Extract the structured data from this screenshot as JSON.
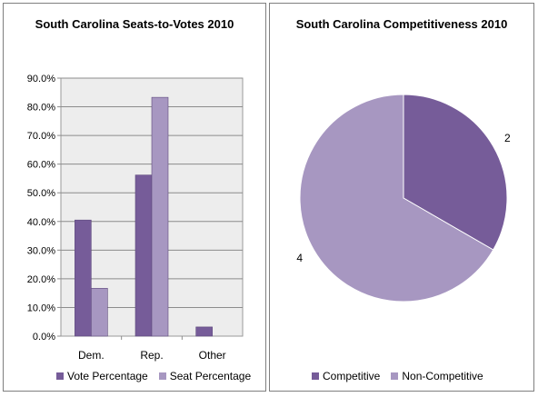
{
  "chart_data": [
    {
      "type": "bar",
      "title": "South Carolina Seats-to-Votes 2010",
      "categories": [
        "Dem.",
        "Rep.",
        "Other"
      ],
      "ylim": [
        0,
        90
      ],
      "yticks": [
        "0.0%",
        "10.0%",
        "20.0%",
        "30.0%",
        "40.0%",
        "50.0%",
        "60.0%",
        "70.0%",
        "80.0%",
        "90.0%"
      ],
      "grid": true,
      "legend": "bottom",
      "series": [
        {
          "name": "Vote Percentage",
          "values": [
            40.5,
            56.2,
            3.2
          ],
          "color": "#765c99"
        },
        {
          "name": "Seat Percentage",
          "values": [
            16.7,
            83.3,
            0.0
          ],
          "color": "#a797c1"
        }
      ]
    },
    {
      "type": "pie",
      "title": "South Carolina Competitiveness 2010",
      "legend": "bottom",
      "slices": [
        {
          "name": "Competitive",
          "value": 2,
          "label": "2",
          "color": "#765c99"
        },
        {
          "name": "Non-Competitive",
          "value": 4,
          "label": "4",
          "color": "#a797c1"
        }
      ]
    }
  ]
}
